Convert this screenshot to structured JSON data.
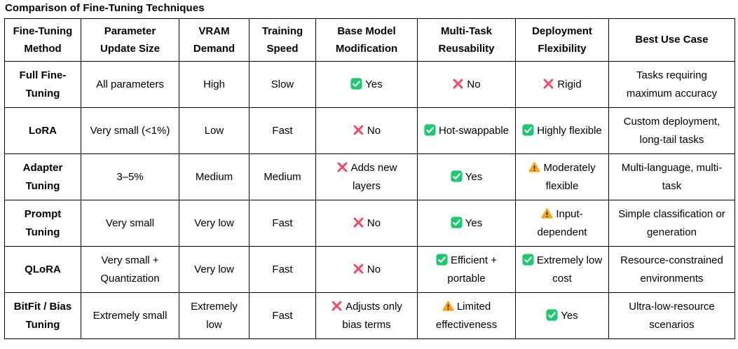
{
  "title": "Comparison of Fine-Tuning Techniques",
  "table": {
    "columns": [
      "Fine-Tuning Method",
      "Parameter Update Size",
      "VRAM Demand",
      "Training Speed",
      "Base Model Modification",
      "Multi-Task Reusability",
      "Deployment Flexibility",
      "Best Use Case"
    ],
    "rows": [
      {
        "method": "Full Fine-Tuning",
        "param_update_size": "All parameters",
        "vram_demand": "High",
        "training_speed": "Slow",
        "base_model_modification": {
          "icon": "check",
          "label": "Yes"
        },
        "multi_task_reusability": {
          "icon": "cross",
          "label": "No"
        },
        "deployment_flexibility": {
          "icon": "cross",
          "label": "Rigid"
        },
        "best_use_case": "Tasks requiring maximum accuracy"
      },
      {
        "method": "LoRA",
        "param_update_size": "Very small (<1%)",
        "vram_demand": "Low",
        "training_speed": "Fast",
        "base_model_modification": {
          "icon": "cross",
          "label": "No"
        },
        "multi_task_reusability": {
          "icon": "check",
          "label": "Hot-swappable"
        },
        "deployment_flexibility": {
          "icon": "check",
          "label": "Highly flexible"
        },
        "best_use_case": "Custom deployment, long-tail tasks"
      },
      {
        "method": "Adapter Tuning",
        "param_update_size": "3–5%",
        "vram_demand": "Medium",
        "training_speed": "Medium",
        "base_model_modification": {
          "icon": "cross",
          "label": "Adds new layers"
        },
        "multi_task_reusability": {
          "icon": "check",
          "label": "Yes"
        },
        "deployment_flexibility": {
          "icon": "warning",
          "label": "Moderately flexible"
        },
        "best_use_case": "Multi-language, multi-task"
      },
      {
        "method": "Prompt Tuning",
        "param_update_size": "Very small",
        "vram_demand": "Very low",
        "training_speed": "Fast",
        "base_model_modification": {
          "icon": "cross",
          "label": "No"
        },
        "multi_task_reusability": {
          "icon": "check",
          "label": "Yes"
        },
        "deployment_flexibility": {
          "icon": "warning",
          "label": "Input-dependent"
        },
        "best_use_case": "Simple classification or generation"
      },
      {
        "method": "QLoRA",
        "param_update_size": "Very small + Quantization",
        "vram_demand": "Very low",
        "training_speed": "Fast",
        "base_model_modification": {
          "icon": "cross",
          "label": "No"
        },
        "multi_task_reusability": {
          "icon": "check",
          "label": "Efficient + portable"
        },
        "deployment_flexibility": {
          "icon": "check",
          "label": "Extremely low cost"
        },
        "best_use_case": "Resource-constrained environments"
      },
      {
        "method": "BitFit / Bias Tuning",
        "param_update_size": "Extremely small",
        "vram_demand": "Extremely low",
        "training_speed": "Fast",
        "base_model_modification": {
          "icon": "cross",
          "label": "Adjusts only bias terms"
        },
        "multi_task_reusability": {
          "icon": "warning",
          "label": "Limited effectiveness"
        },
        "deployment_flexibility": {
          "icon": "check",
          "label": "Yes"
        },
        "best_use_case": "Ultra-low-resource scenarios"
      }
    ]
  },
  "icons": {
    "check": {
      "name": "check-icon",
      "color": "#1EC873"
    },
    "cross": {
      "name": "cross-icon",
      "color": "#ED4C67"
    },
    "warning": {
      "name": "warning-icon",
      "color": "#F9A51A"
    }
  },
  "colors": {
    "text": "#000000",
    "border": "#000000",
    "background": "#FFFFFF"
  }
}
